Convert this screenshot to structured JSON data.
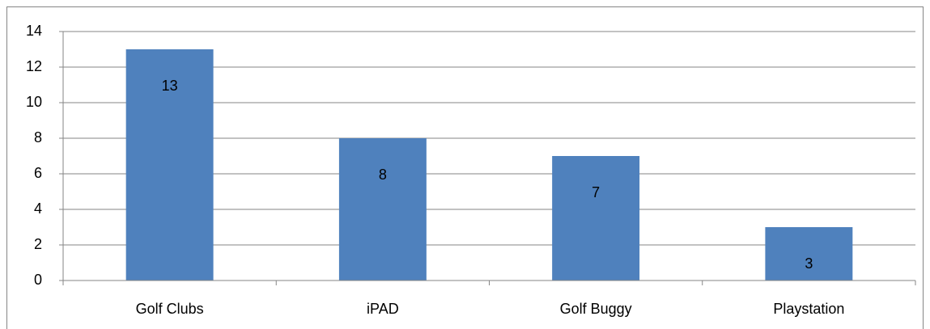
{
  "chart_data": {
    "type": "bar",
    "categories": [
      "Golf Clubs",
      "iPAD",
      "Golf Buggy",
      "Playstation"
    ],
    "values": [
      13,
      8,
      7,
      3
    ],
    "color": "#4f81bd",
    "ylim": [
      0,
      14
    ],
    "yticks": [
      0,
      2,
      4,
      6,
      8,
      10,
      12,
      14
    ],
    "grid": true
  }
}
